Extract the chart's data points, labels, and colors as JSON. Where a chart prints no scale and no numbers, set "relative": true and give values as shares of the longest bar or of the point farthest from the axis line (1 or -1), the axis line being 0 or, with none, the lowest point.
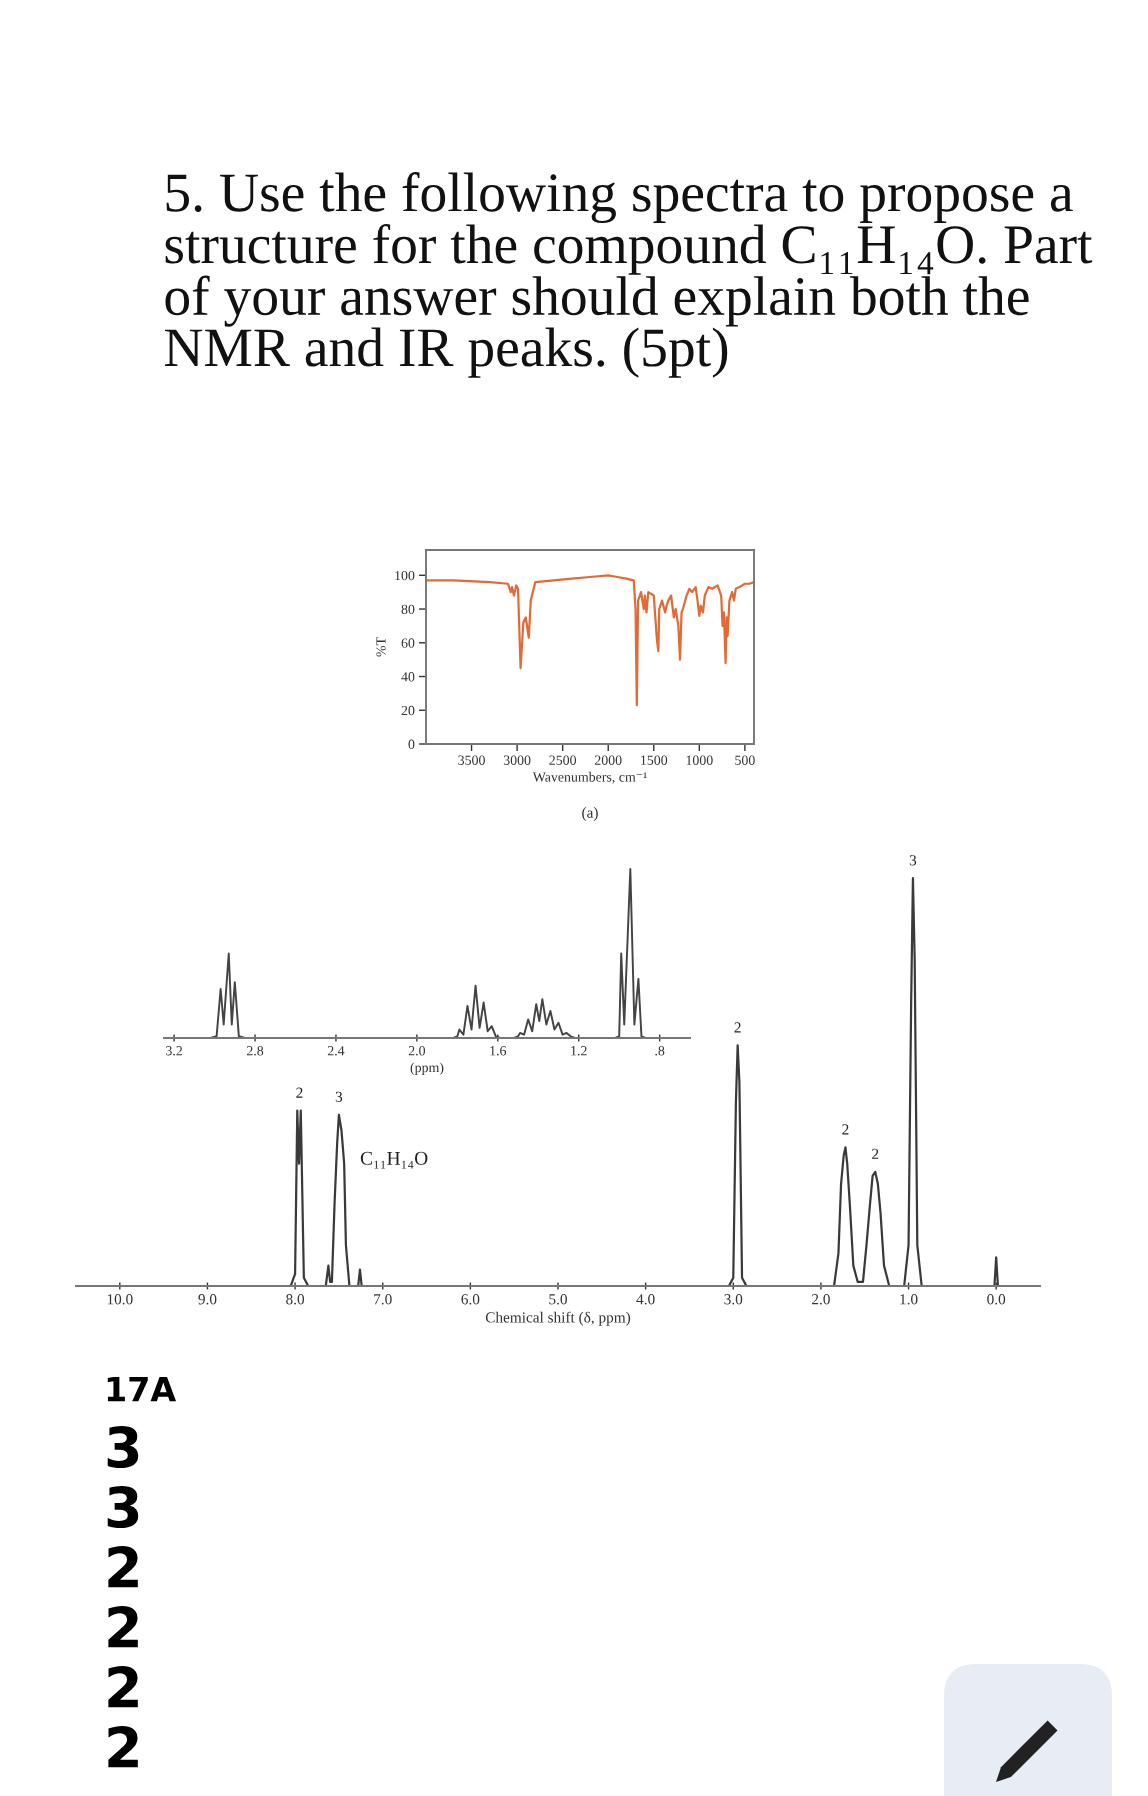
{
  "chart_data": [
    {
      "type": "line",
      "title": "5. Use the following spectra to propose a structure for the compound C₁₁H₁₄O. Part of your answer should explain both the NMR and IR peaks. (5pt)",
      "xlabel": "Wavenumbers, cm⁻¹",
      "ylabel": "%T",
      "annotations": [
        "(a)"
      ],
      "x": [
        4000,
        3700,
        3300,
        3100,
        3070,
        3055,
        3035,
        3010,
        2990,
        2962,
        2945,
        2932,
        2905,
        2872,
        2850,
        2800,
        2600,
        2400,
        2200,
        2000,
        1900,
        1800,
        1720,
        1700,
        1686,
        1672,
        1640,
        1610,
        1598,
        1580,
        1560,
        1500,
        1466,
        1450,
        1440,
        1410,
        1375,
        1360,
        1340,
        1310,
        1280,
        1260,
        1230,
        1212,
        1195,
        1180,
        1140,
        1110,
        1080,
        1040,
        1020,
        1000,
        985,
        960,
        940,
        900,
        860,
        800,
        760,
        745,
        730,
        712,
        700,
        690,
        670,
        640,
        620,
        600,
        560,
        500,
        450,
        400
      ],
      "series": [
        {
          "color": "#e36a35",
          "values": [
            97,
            97,
            96,
            95,
            90,
            93,
            88,
            94,
            92,
            45,
            60,
            72,
            75,
            63,
            85,
            96,
            97,
            98,
            99,
            100,
            99,
            98,
            97,
            80,
            23,
            85,
            90,
            80,
            88,
            78,
            90,
            88,
            62,
            55,
            80,
            85,
            78,
            82,
            85,
            88,
            75,
            80,
            70,
            50,
            78,
            80,
            88,
            92,
            90,
            93,
            85,
            76,
            82,
            78,
            88,
            93,
            92,
            94,
            88,
            70,
            78,
            48,
            75,
            64,
            85,
            90,
            85,
            92,
            93,
            95,
            95,
            96
          ]
        }
      ],
      "xlim": [
        4000,
        400
      ],
      "ylim": [
        0,
        115
      ],
      "xticks": [
        3500,
        3000,
        2500,
        2000,
        1500,
        1000,
        500
      ],
      "yticks": [
        0,
        20,
        40,
        60,
        80,
        100
      ],
      "grid": false,
      "marker": "none",
      "line_style": "solid"
    },
    {
      "type": "line",
      "relative": true,
      "xlabel": "(ppm)",
      "x": [
        3.25,
        3.02,
        2.99,
        2.97,
        2.955,
        2.93,
        2.915,
        2.9,
        2.88,
        2.85,
        1.82,
        1.8,
        1.79,
        1.77,
        1.75,
        1.73,
        1.71,
        1.69,
        1.67,
        1.65,
        1.63,
        1.61,
        1.59,
        1.52,
        1.5,
        1.49,
        1.47,
        1.45,
        1.43,
        1.41,
        1.395,
        1.38,
        1.36,
        1.34,
        1.32,
        1.3,
        1.28,
        1.26,
        1.24,
        1.22,
        1.02,
        1.0,
        0.99,
        0.975,
        0.945,
        0.925,
        0.905,
        0.89,
        0.87,
        0.65
      ],
      "series": [
        {
          "color": "#444444",
          "values": [
            0,
            0,
            0.01,
            0.29,
            0.08,
            0.5,
            0.08,
            0.33,
            0.01,
            0,
            0,
            0.01,
            0.05,
            0.02,
            0.19,
            0.05,
            0.31,
            0.06,
            0.21,
            0.04,
            0.07,
            0.01,
            0,
            0,
            0.01,
            0.03,
            0.02,
            0.11,
            0.04,
            0.2,
            0.1,
            0.23,
            0.08,
            0.16,
            0.05,
            0.09,
            0.02,
            0.03,
            0.01,
            0,
            0,
            0.01,
            0.5,
            0.08,
            1,
            0.08,
            0.35,
            0.01,
            0,
            0
          ]
        }
      ],
      "xlim": [
        3.25,
        0.65
      ],
      "xticks": [
        3.2,
        2.8,
        2.4,
        {
          "value": 2,
          "label": "2.0"
        },
        1.6,
        1.2,
        {
          "value": 0.8,
          "label": ".8"
        }
      ],
      "grid": false,
      "marker": "none",
      "line_style": "solid"
    },
    {
      "type": "line",
      "relative": true,
      "title": "C₁₁H₁₄O",
      "xlabel": "Chemical shift (δ, ppm)",
      "annotations": [
        {
          "text": "2",
          "x": 7.95,
          "y": 0.43
        },
        {
          "text": "3",
          "x": 7.5,
          "y": 0.42
        },
        {
          "text": "2",
          "x": 2.95,
          "y": 0.59
        },
        {
          "text": "2",
          "x": 1.72,
          "y": 0.34
        },
        {
          "text": "2",
          "x": 1.38,
          "y": 0.28
        },
        {
          "text": "3",
          "x": 0.95,
          "y": 1
        },
        "17A",
        "3",
        "3",
        "2",
        "2",
        "2",
        "2"
      ],
      "x": [
        10.5,
        8.05,
        8.0,
        7.975,
        7.955,
        7.935,
        7.9,
        7.85,
        7.65,
        7.62,
        7.6,
        7.58,
        7.55,
        7.52,
        7.5,
        7.47,
        7.44,
        7.42,
        7.38,
        7.28,
        7.26,
        7.24,
        3.05,
        3.0,
        2.97,
        2.95,
        2.93,
        2.9,
        2.85,
        1.85,
        1.8,
        1.77,
        1.74,
        1.72,
        1.7,
        1.67,
        1.63,
        1.58,
        1.52,
        1.48,
        1.44,
        1.41,
        1.38,
        1.35,
        1.32,
        1.28,
        1.22,
        1.05,
        1.0,
        0.97,
        0.95,
        0.93,
        0.9,
        0.85,
        0.02,
        0.0,
        -0.02,
        -0.5
      ],
      "series": [
        {
          "color": "#3a3a3a",
          "values": [
            0,
            0,
            0.03,
            0.43,
            0.3,
            0.43,
            0.02,
            0,
            0,
            0.05,
            0.01,
            0.01,
            0.2,
            0.35,
            0.42,
            0.38,
            0.3,
            0.1,
            0,
            0,
            0.04,
            0,
            0,
            0.02,
            0.45,
            0.59,
            0.5,
            0.02,
            0,
            0,
            0.08,
            0.25,
            0.32,
            0.34,
            0.3,
            0.2,
            0.05,
            0.01,
            0.01,
            0.1,
            0.2,
            0.27,
            0.28,
            0.25,
            0.18,
            0.05,
            0,
            0,
            0.1,
            0.7,
            1,
            0.8,
            0.1,
            0,
            0,
            0.07,
            0,
            0
          ]
        }
      ],
      "xlim": [
        10.5,
        -0.5
      ],
      "xticks": [
        {
          "value": 10,
          "label": "10.0"
        },
        {
          "value": 9,
          "label": "9.0"
        },
        {
          "value": 8,
          "label": "8.0"
        },
        {
          "value": 7,
          "label": "7.0"
        },
        {
          "value": 6,
          "label": "6.0"
        },
        {
          "value": 5,
          "label": "5.0"
        },
        {
          "value": 4,
          "label": "4.0"
        },
        {
          "value": 3,
          "label": "3.0"
        },
        {
          "value": 2,
          "label": "2.0"
        },
        {
          "value": 1,
          "label": "1.0"
        },
        {
          "value": 0,
          "label": "0.0"
        }
      ],
      "grid": false,
      "marker": "none",
      "line_style": "solid"
    }
  ]
}
